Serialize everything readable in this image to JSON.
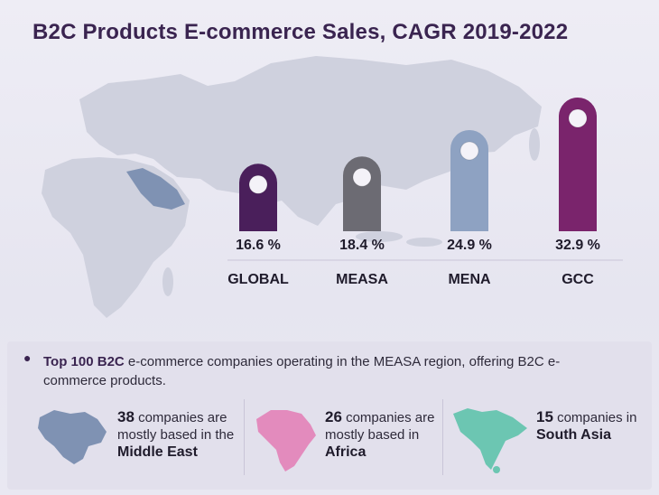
{
  "title": "B2C Products E-commerce Sales, CAGR 2019-2022",
  "colors": {
    "global": "#4a1f5b",
    "measa": "#6c6b73",
    "mena": "#8ea2c2",
    "gcc": "#7a246c",
    "map": "#c9cbd9",
    "map_highlight": "#7f92b3",
    "africa": "#e38bbd",
    "south_asia": "#6cc6b2"
  },
  "chart_data": {
    "type": "bar",
    "title": "B2C Products E-commerce Sales, CAGR 2019-2022",
    "categories": [
      "GLOBAL",
      "MEASA",
      "MENA",
      "GCC"
    ],
    "values": [
      16.6,
      18.4,
      24.9,
      32.9
    ],
    "value_labels": [
      "16.6 %",
      "18.4 %",
      "24.9 %",
      "32.9 %"
    ],
    "unit": "%",
    "ylim": [
      0,
      35
    ],
    "grid": false,
    "legend": "none"
  },
  "summary": {
    "bold": "Top 100 B2C",
    "text": " e-commerce companies operating in the MEASA region, offering B2C e-commerce products."
  },
  "regions": [
    {
      "count": "38",
      "text": " companies are mostly based in the ",
      "place": "Middle East",
      "icon": "middle-east-map-icon"
    },
    {
      "count": "26",
      "text": " companies are mostly based in ",
      "place": "Africa",
      "icon": "africa-map-icon"
    },
    {
      "count": "15",
      "text": " companies in ",
      "place": "South Asia",
      "icon": "south-asia-map-icon"
    }
  ]
}
